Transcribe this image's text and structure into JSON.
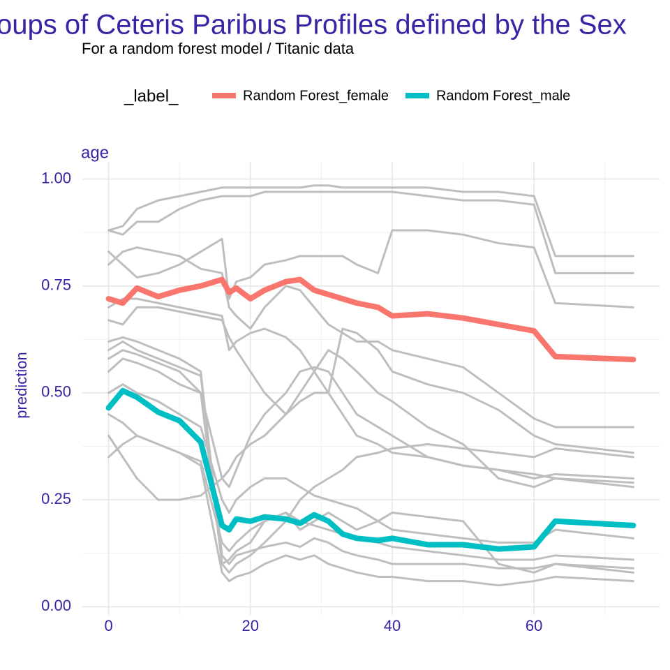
{
  "chart_data": {
    "type": "line",
    "title": "oups of Ceteris Paribus Profiles defined by the Sex",
    "subtitle": "For a random forest model / Titanic data",
    "legend_title": "_label_",
    "legend_position": "top",
    "facet_label": "age",
    "y_label": "prediction",
    "x": [
      0,
      2,
      4,
      7,
      10,
      13,
      16,
      17,
      18,
      20,
      22,
      25,
      27,
      29,
      31,
      33,
      35,
      38,
      40,
      45,
      50,
      55,
      60,
      63,
      74
    ],
    "series": [
      {
        "name": "Random Forest_female",
        "color": "#f8766d",
        "values": [
          0.72,
          0.71,
          0.745,
          0.725,
          0.74,
          0.75,
          0.765,
          0.735,
          0.745,
          0.72,
          0.74,
          0.76,
          0.765,
          0.74,
          0.73,
          0.72,
          0.71,
          0.7,
          0.68,
          0.685,
          0.675,
          0.66,
          0.645,
          0.585,
          0.578
        ]
      },
      {
        "name": "Random Forest_male",
        "color": "#00bfc4",
        "values": [
          0.465,
          0.505,
          0.49,
          0.455,
          0.435,
          0.385,
          0.19,
          0.18,
          0.205,
          0.2,
          0.21,
          0.205,
          0.195,
          0.215,
          0.2,
          0.17,
          0.16,
          0.155,
          0.16,
          0.145,
          0.145,
          0.135,
          0.14,
          0.2,
          0.19
        ]
      }
    ],
    "profiles": {
      "color": "#bebebe",
      "values": [
        [
          0.88,
          0.89,
          0.93,
          0.95,
          0.96,
          0.97,
          0.98,
          0.98,
          0.98,
          0.98,
          0.98,
          0.98,
          0.98,
          0.985,
          0.985,
          0.98,
          0.98,
          0.98,
          0.98,
          0.98,
          0.97,
          0.97,
          0.96,
          0.82,
          0.82
        ],
        [
          0.88,
          0.87,
          0.9,
          0.9,
          0.93,
          0.95,
          0.96,
          0.96,
          0.96,
          0.96,
          0.97,
          0.97,
          0.97,
          0.97,
          0.97,
          0.97,
          0.97,
          0.97,
          0.97,
          0.96,
          0.95,
          0.95,
          0.94,
          0.78,
          0.78
        ],
        [
          0.83,
          0.8,
          0.77,
          0.78,
          0.8,
          0.83,
          0.86,
          0.72,
          0.76,
          0.77,
          0.8,
          0.81,
          0.82,
          0.82,
          0.82,
          0.82,
          0.8,
          0.78,
          0.88,
          0.88,
          0.87,
          0.85,
          0.84,
          0.71,
          0.7
        ],
        [
          0.8,
          0.83,
          0.84,
          0.83,
          0.82,
          0.79,
          0.78,
          0.7,
          0.68,
          0.65,
          0.7,
          0.75,
          0.74,
          0.7,
          0.66,
          0.64,
          0.62,
          0.62,
          0.6,
          0.58,
          0.56,
          0.5,
          0.44,
          0.42,
          0.42
        ],
        [
          0.67,
          0.66,
          0.7,
          0.7,
          0.69,
          0.68,
          0.67,
          0.63,
          0.6,
          0.55,
          0.5,
          0.45,
          0.48,
          0.5,
          0.5,
          0.65,
          0.64,
          0.6,
          0.55,
          0.52,
          0.5,
          0.46,
          0.4,
          0.38,
          0.36
        ],
        [
          0.6,
          0.62,
          0.6,
          0.58,
          0.56,
          0.54,
          0.12,
          0.1,
          0.12,
          0.13,
          0.14,
          0.15,
          0.14,
          0.16,
          0.15,
          0.13,
          0.12,
          0.11,
          0.1,
          0.1,
          0.1,
          0.09,
          0.09,
          0.1,
          0.09
        ],
        [
          0.55,
          0.58,
          0.57,
          0.55,
          0.52,
          0.5,
          0.1,
          0.08,
          0.1,
          0.12,
          0.15,
          0.2,
          0.25,
          0.28,
          0.3,
          0.32,
          0.35,
          0.36,
          0.37,
          0.38,
          0.37,
          0.36,
          0.35,
          0.37,
          0.35
        ],
        [
          0.5,
          0.52,
          0.5,
          0.48,
          0.45,
          0.42,
          0.25,
          0.22,
          0.25,
          0.28,
          0.3,
          0.3,
          0.28,
          0.26,
          0.25,
          0.24,
          0.23,
          0.2,
          0.18,
          0.17,
          0.16,
          0.15,
          0.15,
          0.18,
          0.16
        ],
        [
          0.45,
          0.43,
          0.4,
          0.38,
          0.36,
          0.33,
          0.08,
          0.06,
          0.07,
          0.08,
          0.1,
          0.12,
          0.11,
          0.12,
          0.1,
          0.09,
          0.08,
          0.07,
          0.07,
          0.06,
          0.06,
          0.05,
          0.06,
          0.07,
          0.06
        ],
        [
          0.4,
          0.35,
          0.3,
          0.25,
          0.25,
          0.26,
          0.3,
          0.32,
          0.35,
          0.38,
          0.4,
          0.45,
          0.5,
          0.55,
          0.6,
          0.58,
          0.55,
          0.5,
          0.48,
          0.42,
          0.38,
          0.3,
          0.28,
          0.3,
          0.28
        ],
        [
          0.35,
          0.38,
          0.4,
          0.38,
          0.36,
          0.34,
          0.15,
          0.13,
          0.15,
          0.18,
          0.2,
          0.22,
          0.2,
          0.19,
          0.18,
          0.17,
          0.16,
          0.15,
          0.14,
          0.13,
          0.12,
          0.11,
          0.11,
          0.12,
          0.11
        ],
        [
          0.58,
          0.6,
          0.59,
          0.57,
          0.55,
          0.5,
          0.3,
          0.28,
          0.32,
          0.4,
          0.45,
          0.5,
          0.55,
          0.56,
          0.55,
          0.5,
          0.45,
          0.42,
          0.4,
          0.35,
          0.33,
          0.32,
          0.3,
          0.31,
          0.3
        ],
        [
          0.62,
          0.63,
          0.62,
          0.6,
          0.58,
          0.55,
          0.1,
          0.11,
          0.13,
          0.15,
          0.2,
          0.22,
          0.18,
          0.2,
          0.22,
          0.2,
          0.18,
          0.2,
          0.22,
          0.21,
          0.2,
          0.1,
          0.08,
          0.1,
          0.08
        ],
        [
          0.7,
          0.72,
          0.72,
          0.71,
          0.7,
          0.69,
          0.68,
          0.6,
          0.62,
          0.64,
          0.65,
          0.63,
          0.6,
          0.55,
          0.5,
          0.45,
          0.4,
          0.38,
          0.36,
          0.35,
          0.33,
          0.32,
          0.31,
          0.3,
          0.29
        ]
      ]
    },
    "xlim": [
      -3.7,
      77.7
    ],
    "ylim": [
      -0.019,
      1.04
    ],
    "xticks": [
      0,
      20,
      40,
      60
    ],
    "yticks": [
      {
        "value": 0,
        "label": "0.00"
      },
      {
        "value": 0.25,
        "label": "0.25"
      },
      {
        "value": 0.5,
        "label": "0.50"
      },
      {
        "value": 0.75,
        "label": "0.75"
      },
      {
        "value": 1,
        "label": "1.00"
      }
    ],
    "minor_xticks": [
      10,
      30,
      50,
      70
    ],
    "minor_yticks": [
      0.125,
      0.375,
      0.625,
      0.875
    ],
    "grid": true
  }
}
